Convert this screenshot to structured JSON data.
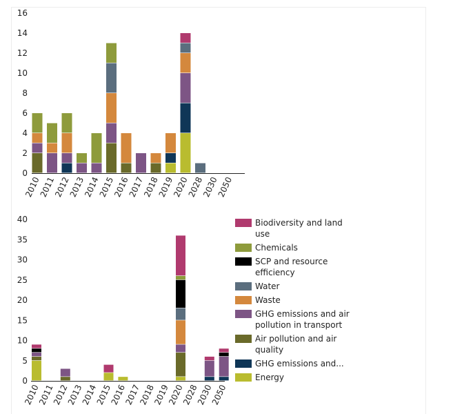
{
  "colors": {
    "Biodiversity and land use": "#b03a6e",
    "Chemicals": "#8e9b3c",
    "SCP and resource efficiency": "#000000",
    "Water": "#5b6e7e",
    "Waste": "#d4883d",
    "GHG emissions and air pollution in transport": "#7d5585",
    "Air pollution and air quality": "#6a6a2a",
    "GHG emissions and...": "#0f3657",
    "Energy": "#b9bc2f"
  },
  "legend": [
    "Biodiversity and land use",
    "Chemicals",
    "SCP and resource efficiency",
    "Water",
    "Waste",
    "GHG emissions and air pollution in transport",
    "Air pollution and air quality",
    "GHG emissions and...",
    "Energy"
  ],
  "chart_data": [
    {
      "type": "bar",
      "stacked": true,
      "categories": [
        "2010",
        "2011",
        "2012",
        "2013",
        "2014",
        "2015",
        "2016",
        "2017",
        "2018",
        "2019",
        "2020",
        "2028",
        "2030",
        "2050"
      ],
      "ylim": [
        0,
        16
      ],
      "yticks": [
        0,
        2,
        4,
        6,
        8,
        10,
        12,
        14,
        16
      ],
      "series": [
        {
          "name": "Energy",
          "values": [
            0,
            0,
            0,
            0,
            0,
            0,
            0,
            0,
            0,
            1,
            4,
            0,
            0,
            0
          ]
        },
        {
          "name": "GHG emissions and...",
          "values": [
            0,
            0,
            1,
            0,
            0,
            0,
            0,
            0,
            0,
            1,
            3,
            0,
            0,
            0
          ]
        },
        {
          "name": "Air pollution and air quality",
          "values": [
            2,
            0,
            0,
            0,
            0,
            3,
            1,
            0,
            1,
            0,
            0,
            0,
            0,
            0
          ]
        },
        {
          "name": "GHG emissions and air pollution in transport",
          "values": [
            1,
            2,
            1,
            1,
            1,
            2,
            0,
            2,
            0,
            0,
            3,
            0,
            0,
            0
          ]
        },
        {
          "name": "Waste",
          "values": [
            1,
            1,
            2,
            0,
            0,
            3,
            3,
            0,
            1,
            2,
            2,
            0,
            0,
            0
          ]
        },
        {
          "name": "Water",
          "values": [
            0,
            0,
            0,
            0,
            0,
            3,
            0,
            0,
            0,
            0,
            1,
            1,
            0,
            0
          ]
        },
        {
          "name": "SCP and resource efficiency",
          "values": [
            0,
            0,
            0,
            0,
            0,
            0,
            0,
            0,
            0,
            0,
            0,
            0,
            0,
            0
          ]
        },
        {
          "name": "Chemicals",
          "values": [
            2,
            2,
            2,
            1,
            3,
            2,
            0,
            0,
            0,
            0,
            0,
            0,
            0,
            0
          ]
        },
        {
          "name": "Biodiversity and land use",
          "values": [
            0,
            0,
            0,
            0,
            0,
            0,
            0,
            0,
            0,
            0,
            1,
            0,
            0,
            0
          ]
        }
      ]
    },
    {
      "type": "bar",
      "stacked": true,
      "categories": [
        "2010",
        "2011",
        "2012",
        "2013",
        "2014",
        "2015",
        "2016",
        "2017",
        "2018",
        "2019",
        "2020",
        "2028",
        "2030",
        "2050"
      ],
      "ylim": [
        0,
        40
      ],
      "yticks": [
        0,
        5,
        10,
        15,
        20,
        25,
        30,
        35,
        40
      ],
      "series": [
        {
          "name": "Energy",
          "values": [
            5,
            0,
            0,
            0,
            0,
            2,
            1,
            0,
            0,
            0,
            1,
            0,
            0,
            0
          ]
        },
        {
          "name": "GHG emissions and...",
          "values": [
            0,
            0,
            0,
            0,
            0,
            0,
            0,
            0,
            0,
            0,
            0,
            0,
            1,
            1
          ]
        },
        {
          "name": "Air pollution and air quality",
          "values": [
            1,
            0,
            1,
            0,
            0,
            0,
            0,
            0,
            0,
            0,
            6,
            0,
            0,
            0
          ]
        },
        {
          "name": "GHG emissions and air pollution in transport",
          "values": [
            1,
            0,
            2,
            0,
            0,
            0,
            0,
            0,
            0,
            0,
            2,
            0,
            4,
            5
          ]
        },
        {
          "name": "Waste",
          "values": [
            0,
            0,
            0,
            0,
            0,
            0,
            0,
            0,
            0,
            0,
            6,
            0,
            0,
            0
          ]
        },
        {
          "name": "Water",
          "values": [
            0,
            0,
            0,
            0,
            0,
            0,
            0,
            0,
            0,
            0,
            3,
            0,
            0,
            0
          ]
        },
        {
          "name": "SCP and resource efficiency",
          "values": [
            1,
            0,
            0,
            0,
            0,
            0,
            0,
            0,
            0,
            0,
            7,
            0,
            0,
            1
          ]
        },
        {
          "name": "Chemicals",
          "values": [
            0,
            0,
            0,
            0,
            0,
            0,
            0,
            0,
            0,
            0,
            1,
            0,
            0,
            0
          ]
        },
        {
          "name": "Biodiversity and land use",
          "values": [
            1,
            0,
            0,
            0,
            0,
            2,
            0,
            0,
            0,
            0,
            10,
            0,
            1,
            1
          ]
        }
      ]
    }
  ]
}
